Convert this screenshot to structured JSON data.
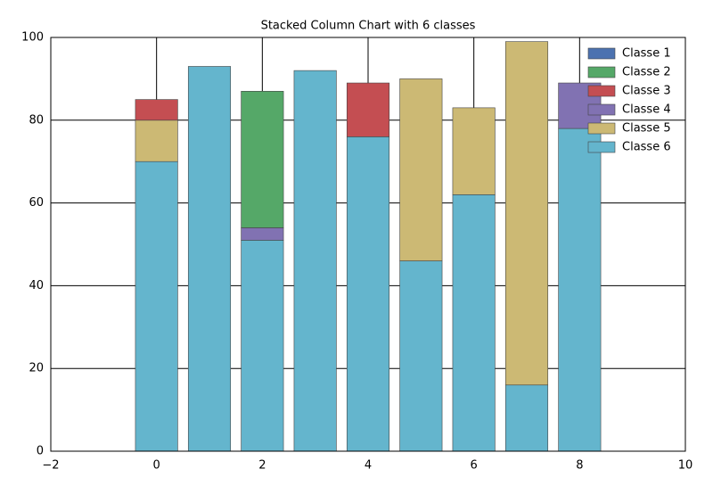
{
  "chart_data": {
    "type": "stacked_bar",
    "title": "Stacked Column Chart with 6 classes",
    "x": [
      0,
      1,
      2,
      3,
      4,
      5,
      6,
      7,
      8
    ],
    "series": [
      {
        "name": "Classe 1",
        "color": "#4c72b0",
        "values": [
          0,
          0,
          0,
          0,
          0,
          0,
          0,
          0,
          0
        ]
      },
      {
        "name": "Classe 2",
        "color": "#55a868",
        "values": [
          0,
          0,
          33,
          0,
          0,
          0,
          0,
          0,
          0
        ]
      },
      {
        "name": "Classe 3",
        "color": "#c44e52",
        "values": [
          5,
          0,
          0,
          0,
          13,
          0,
          0,
          0,
          0
        ]
      },
      {
        "name": "Classe 4",
        "color": "#8172b2",
        "values": [
          0,
          0,
          3,
          0,
          0,
          0,
          0,
          0,
          11
        ]
      },
      {
        "name": "Classe 5",
        "color": "#ccb974",
        "values": [
          10,
          0,
          0,
          0,
          0,
          44,
          21,
          83,
          0
        ]
      },
      {
        "name": "Classe 6",
        "color": "#64b5cd",
        "values": [
          70,
          93,
          51,
          92,
          76,
          46,
          62,
          16,
          78
        ]
      }
    ],
    "xlim": [
      -2,
      10
    ],
    "xticks": [
      {
        "value": -2,
        "label": "−2"
      },
      0,
      2,
      4,
      6,
      8,
      10
    ],
    "ylim": [
      0,
      100
    ],
    "yticks": [
      0,
      20,
      40,
      60,
      80,
      100
    ],
    "grid": true,
    "legend": "upper right"
  }
}
